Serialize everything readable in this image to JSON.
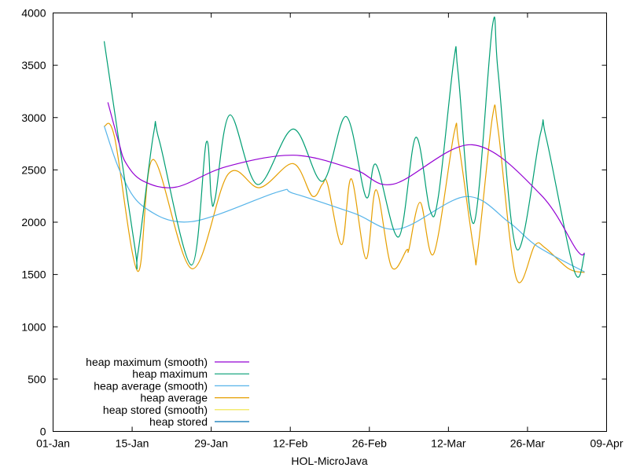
{
  "chart_data": {
    "type": "line",
    "title": "",
    "xlabel": "HOL-MicroJava",
    "ylabel": "",
    "x_unit": "days since 01-Jan",
    "xlim": [
      0,
      98
    ],
    "ylim": [
      0,
      4000
    ],
    "x_ticks": [
      {
        "day": 0,
        "label": "01-Jan"
      },
      {
        "day": 14,
        "label": "15-Jan"
      },
      {
        "day": 28,
        "label": "29-Jan"
      },
      {
        "day": 42,
        "label": "12-Feb"
      },
      {
        "day": 56,
        "label": "26-Feb"
      },
      {
        "day": 70,
        "label": "12-Mar"
      },
      {
        "day": 84,
        "label": "26-Mar"
      },
      {
        "day": 98,
        "label": "09-Apr"
      }
    ],
    "y_ticks": [
      0,
      500,
      1000,
      1500,
      2000,
      2500,
      3000,
      3500,
      4000
    ],
    "grid": false,
    "legend_position": "bottom-left",
    "series": [
      {
        "name": "heap maximum (smooth)",
        "color": "#9400d3",
        "points": [
          [
            9.7,
            3145
          ],
          [
            11.6,
            2770
          ],
          [
            12.9,
            2565
          ],
          [
            15.9,
            2395
          ],
          [
            21.7,
            2335
          ],
          [
            30.6,
            2530
          ],
          [
            42.6,
            2640
          ],
          [
            53.3,
            2505
          ],
          [
            60.3,
            2365
          ],
          [
            74.2,
            2740
          ],
          [
            86.3,
            2265
          ],
          [
            92.7,
            1735
          ],
          [
            94.1,
            1705
          ]
        ]
      },
      {
        "name": "heap maximum",
        "color": "#009e73",
        "points": [
          [
            9.05,
            3730
          ],
          [
            14.4,
            1790
          ],
          [
            15.0,
            1700
          ],
          [
            17.8,
            2850
          ],
          [
            18.8,
            2780
          ],
          [
            24.5,
            1590
          ],
          [
            27.1,
            2760
          ],
          [
            28.0,
            2240
          ],
          [
            28.7,
            2230
          ],
          [
            31.3,
            3025
          ],
          [
            36.2,
            2360
          ],
          [
            42.5,
            2890
          ],
          [
            47.7,
            2390
          ],
          [
            51.9,
            3010
          ],
          [
            55.4,
            2240
          ],
          [
            57.2,
            2550
          ],
          [
            61.2,
            1860
          ],
          [
            64.2,
            2810
          ],
          [
            66.7,
            2120
          ],
          [
            68.2,
            2240
          ],
          [
            71.0,
            3565
          ],
          [
            71.7,
            3430
          ],
          [
            74.5,
            1990
          ],
          [
            77.8,
            3880
          ],
          [
            78.8,
            3430
          ],
          [
            82.1,
            1740
          ],
          [
            86.3,
            2850
          ],
          [
            87.3,
            2810
          ],
          [
            92.3,
            1530
          ],
          [
            94.1,
            1700
          ]
        ]
      },
      {
        "name": "heap average (smooth)",
        "color": "#56b4e9",
        "points": [
          [
            9.05,
            2920
          ],
          [
            12.0,
            2470
          ],
          [
            16.1,
            2145
          ],
          [
            24.5,
            2005
          ],
          [
            39.8,
            2290
          ],
          [
            42.6,
            2275
          ],
          [
            53.3,
            2085
          ],
          [
            61.2,
            1935
          ],
          [
            73.1,
            2245
          ],
          [
            80.7,
            2000
          ],
          [
            85.7,
            1770
          ],
          [
            94.1,
            1525
          ]
        ]
      },
      {
        "name": "heap average",
        "color": "#e69f00",
        "points": [
          [
            9.05,
            2920
          ],
          [
            10.9,
            2810
          ],
          [
            15.0,
            1530
          ],
          [
            17.7,
            2600
          ],
          [
            24.6,
            1555
          ],
          [
            31.0,
            2460
          ],
          [
            36.6,
            2330
          ],
          [
            42.5,
            2560
          ],
          [
            45.9,
            2250
          ],
          [
            47.7,
            2365
          ],
          [
            48.6,
            2365
          ],
          [
            51.1,
            1785
          ],
          [
            52.8,
            2415
          ],
          [
            55.4,
            1650
          ],
          [
            57.2,
            2310
          ],
          [
            59.9,
            1575
          ],
          [
            62.6,
            1735
          ],
          [
            63.0,
            1740
          ],
          [
            65.0,
            2190
          ],
          [
            67.4,
            1700
          ],
          [
            71.0,
            2850
          ],
          [
            71.8,
            2755
          ],
          [
            74.5,
            1735
          ],
          [
            75.2,
            1735
          ],
          [
            77.8,
            3010
          ],
          [
            78.8,
            2880
          ],
          [
            82.0,
            1465
          ],
          [
            85.3,
            1780
          ],
          [
            87.1,
            1755
          ],
          [
            91.3,
            1555
          ],
          [
            94.1,
            1520
          ]
        ]
      },
      {
        "name": "heap stored (smooth)",
        "color": "#f0e442",
        "points": []
      },
      {
        "name": "heap stored",
        "color": "#0072b2",
        "points": []
      }
    ]
  }
}
